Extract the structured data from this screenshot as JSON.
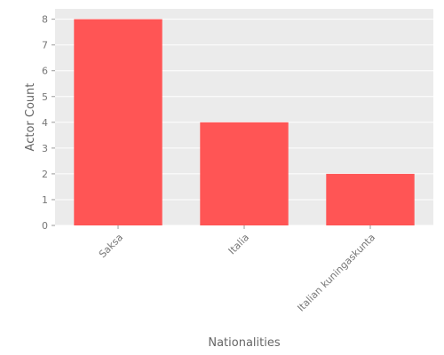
{
  "chart_data": {
    "type": "bar",
    "categories": [
      "Saksa",
      "Italia",
      "Italian kuningaskunta"
    ],
    "values": [
      8,
      4,
      2
    ],
    "title": "",
    "xlabel": "Nationalities",
    "ylabel": "Actor Count",
    "ylim": [
      0,
      8.4
    ],
    "yticks": [
      0,
      1,
      2,
      3,
      4,
      5,
      6,
      7,
      8
    ],
    "grid": true,
    "bar_color": "#ff5555",
    "background_color": "#ebebeb",
    "grid_color": "#ffffff"
  }
}
